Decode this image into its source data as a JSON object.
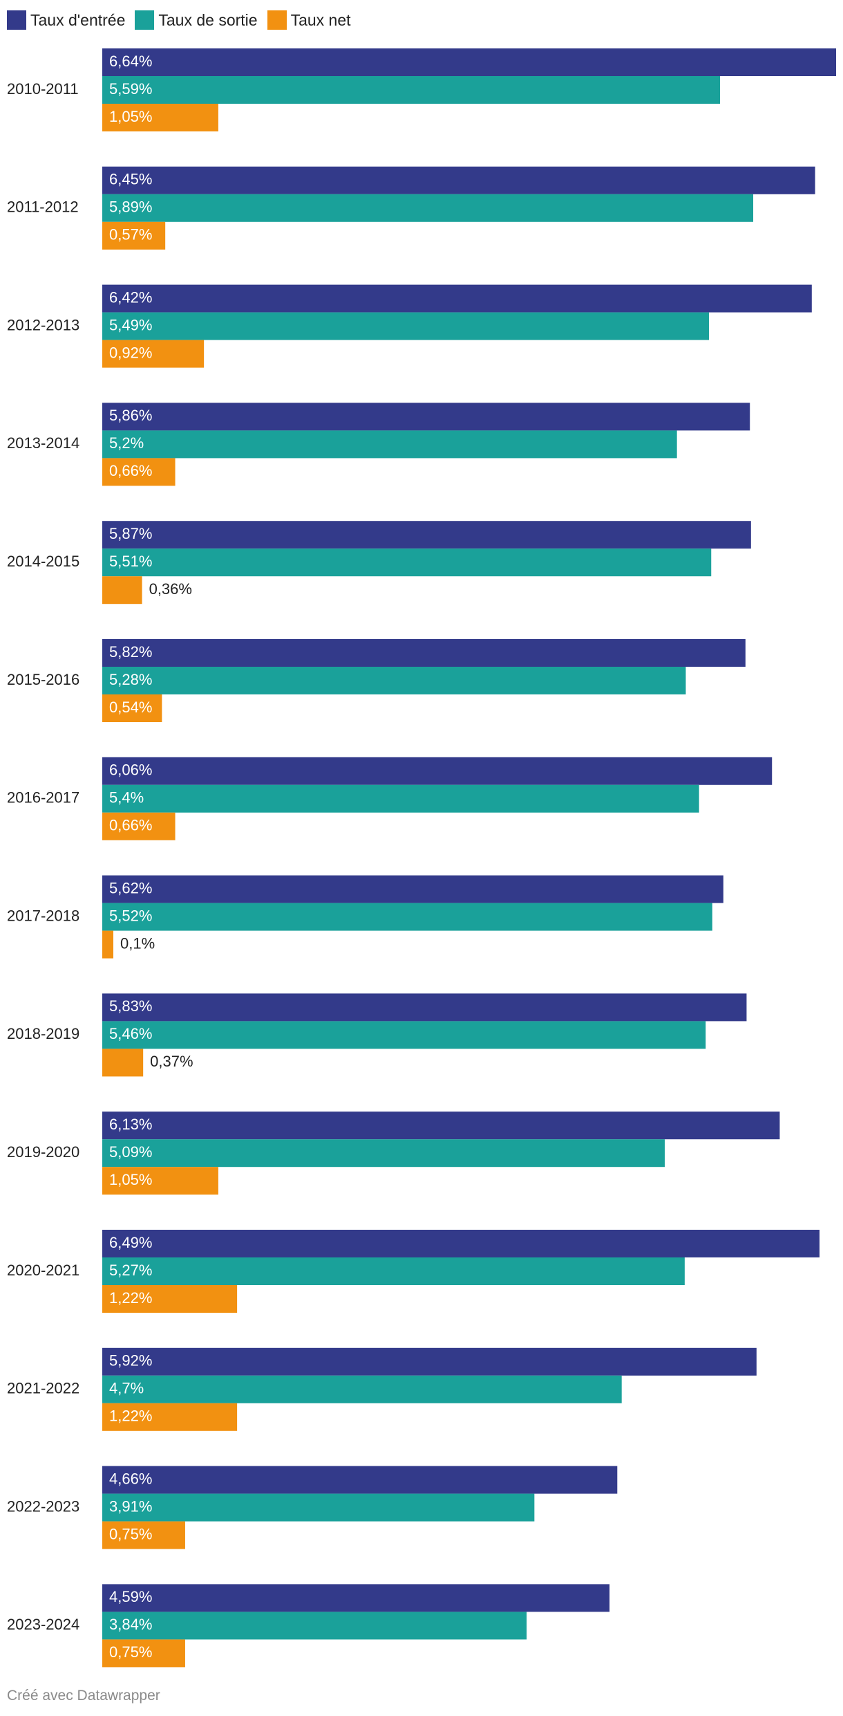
{
  "chart_data": {
    "type": "bar",
    "orientation": "horizontal",
    "title": "",
    "xlabel": "",
    "ylabel": "",
    "xlim": [
      0,
      6.64
    ],
    "grid": false,
    "legend_position": "top-left",
    "categories": [
      "2010-2011",
      "2011-2012",
      "2012-2013",
      "2013-2014",
      "2014-2015",
      "2015-2016",
      "2016-2017",
      "2017-2018",
      "2018-2019",
      "2019-2020",
      "2020-2021",
      "2021-2022",
      "2022-2023",
      "2023-2024"
    ],
    "series": [
      {
        "name": "Taux d'entrée",
        "color": "#333a8a",
        "values": [
          6.64,
          6.45,
          6.42,
          5.86,
          5.87,
          5.82,
          6.06,
          5.62,
          5.83,
          6.13,
          6.49,
          5.92,
          4.66,
          4.59
        ],
        "labels": [
          "6,64%",
          "6,45%",
          "6,42%",
          "5,86%",
          "5,87%",
          "5,82%",
          "6,06%",
          "5,62%",
          "5,83%",
          "6,13%",
          "6,49%",
          "5,92%",
          "4,66%",
          "4,59%"
        ]
      },
      {
        "name": "Taux de sortie",
        "color": "#1aa19a",
        "values": [
          5.59,
          5.89,
          5.49,
          5.2,
          5.51,
          5.28,
          5.4,
          5.52,
          5.46,
          5.09,
          5.27,
          4.7,
          3.91,
          3.84
        ],
        "labels": [
          "5,59%",
          "5,89%",
          "5,49%",
          "5,2%",
          "5,51%",
          "5,28%",
          "5,4%",
          "5,52%",
          "5,46%",
          "5,09%",
          "5,27%",
          "4,7%",
          "3,91%",
          "3,84%"
        ]
      },
      {
        "name": "Taux net",
        "color": "#f29111",
        "values": [
          1.05,
          0.57,
          0.92,
          0.66,
          0.36,
          0.54,
          0.66,
          0.1,
          0.37,
          1.05,
          1.22,
          1.22,
          0.75,
          0.75
        ],
        "labels": [
          "1,05%",
          "0,57%",
          "0,92%",
          "0,66%",
          "0,36%",
          "0,54%",
          "0,66%",
          "0,1%",
          "0,37%",
          "1,05%",
          "1,22%",
          "1,22%",
          "0,75%",
          "0,75%"
        ]
      }
    ]
  },
  "footer": {
    "credit": "Créé avec Datawrapper"
  }
}
